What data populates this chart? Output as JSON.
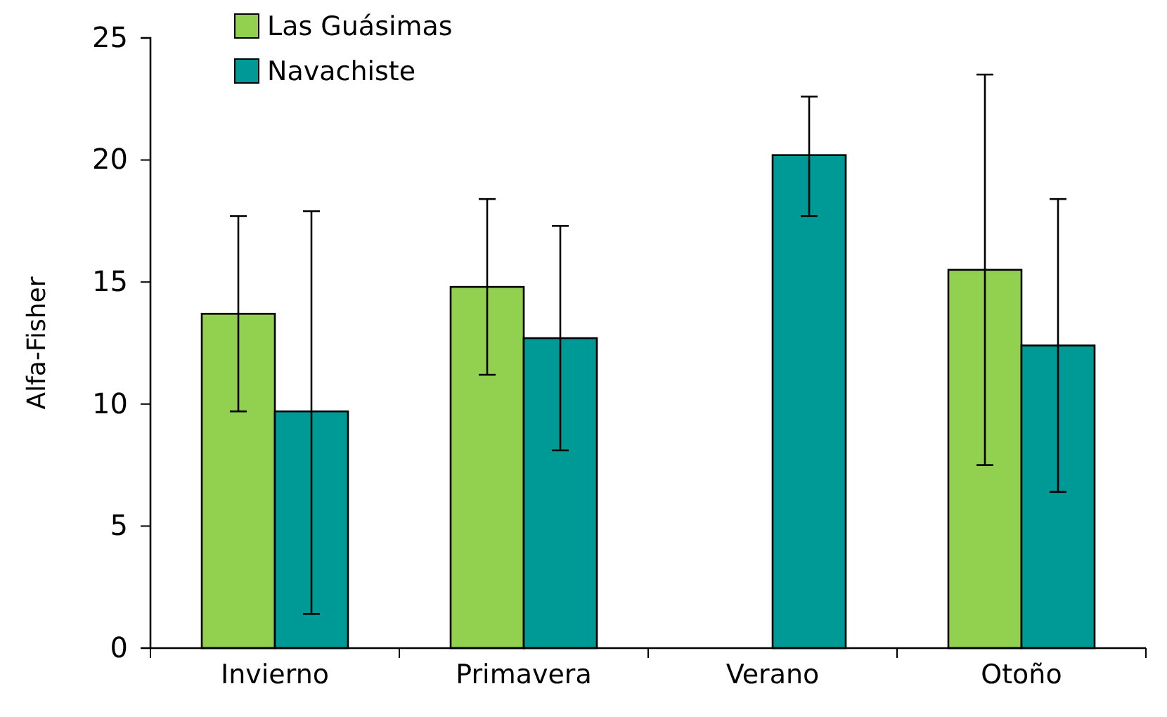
{
  "chart_data": {
    "type": "bar",
    "ylabel": "Alfa-Fisher",
    "categories": [
      "Invierno",
      "Primavera",
      "Verano",
      "Otoño"
    ],
    "series": [
      {
        "name": "Las Guásimas",
        "color": "#92d050",
        "values": [
          13.7,
          14.8,
          null,
          15.5
        ],
        "errors": [
          [
            9.7,
            17.7
          ],
          [
            11.2,
            18.4
          ],
          null,
          [
            7.5,
            23.5
          ]
        ]
      },
      {
        "name": "Navachiste",
        "color": "#009a96",
        "values": [
          9.7,
          12.7,
          20.2,
          12.4
        ],
        "errors": [
          [
            1.4,
            17.9
          ],
          [
            8.1,
            17.3
          ],
          [
            17.7,
            22.6
          ],
          [
            6.4,
            18.4
          ]
        ]
      }
    ],
    "ylim": [
      0,
      25
    ],
    "yticks": [
      0,
      5,
      10,
      15,
      20,
      25
    ],
    "grid": false,
    "legend": "top left"
  }
}
